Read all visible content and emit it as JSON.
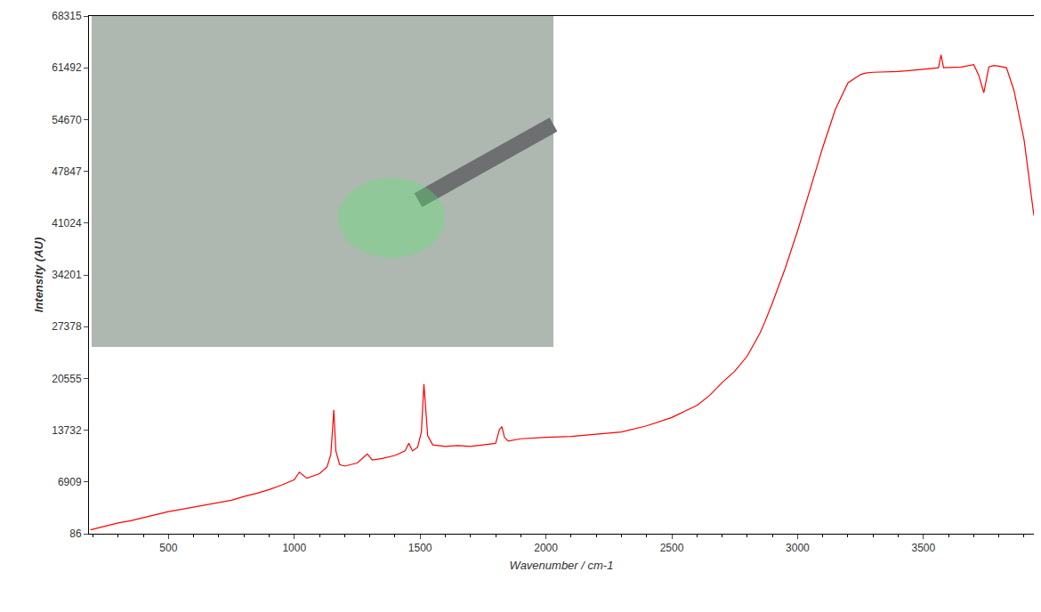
{
  "chart_data": {
    "type": "line",
    "x_label": "Wavenumber / cm-1",
    "y_label": "Intensity (AU)",
    "color": "#ff0000",
    "grid": false,
    "xlim": [
      184,
      3939
    ],
    "xticks": [
      500,
      1000,
      1500,
      2000,
      2500,
      3000,
      3500
    ],
    "ylim": [
      86,
      68315
    ],
    "yticks": [
      86,
      6909,
      13732,
      20555,
      27378,
      34201,
      41024,
      47847,
      54670,
      61492,
      68315
    ],
    "x": [
      190,
      250,
      300,
      350,
      400,
      450,
      500,
      550,
      600,
      650,
      700,
      750,
      800,
      850,
      900,
      950,
      1000,
      1020,
      1050,
      1100,
      1130,
      1145,
      1157,
      1165,
      1180,
      1200,
      1250,
      1290,
      1310,
      1350,
      1400,
      1440,
      1455,
      1470,
      1490,
      1505,
      1515,
      1530,
      1550,
      1600,
      1650,
      1700,
      1750,
      1800,
      1815,
      1825,
      1835,
      1850,
      1900,
      1950,
      2000,
      2100,
      2200,
      2300,
      2400,
      2500,
      2550,
      2600,
      2650,
      2700,
      2750,
      2800,
      2850,
      2870,
      2900,
      2950,
      3000,
      3050,
      3100,
      3150,
      3200,
      3250,
      3270,
      3300,
      3400,
      3500,
      3560,
      3570,
      3580,
      3650,
      3700,
      3720,
      3740,
      3760,
      3780,
      3800,
      3830,
      3860,
      3900,
      3939
    ],
    "values": [
      600,
      1100,
      1500,
      1800,
      2200,
      2600,
      3000,
      3300,
      3600,
      3900,
      4200,
      4500,
      5000,
      5400,
      5900,
      6500,
      7200,
      8200,
      7400,
      8000,
      8900,
      10500,
      16400,
      11000,
      9200,
      9000,
      9400,
      10600,
      9800,
      10000,
      10400,
      11000,
      12000,
      11000,
      11500,
      13500,
      19800,
      13000,
      11800,
      11600,
      11700,
      11600,
      11800,
      12000,
      13800,
      14200,
      12800,
      12300,
      12600,
      12700,
      12800,
      12900,
      13200,
      13500,
      14300,
      15400,
      16200,
      17000,
      18300,
      20000,
      21500,
      23500,
      26500,
      28000,
      30500,
      35000,
      40000,
      45500,
      51000,
      56000,
      59500,
      60600,
      60800,
      60900,
      61000,
      61300,
      61500,
      63200,
      61500,
      61600,
      61900,
      60500,
      58200,
      61600,
      61800,
      61700,
      61500,
      58500,
      52000,
      42000
    ]
  }
}
